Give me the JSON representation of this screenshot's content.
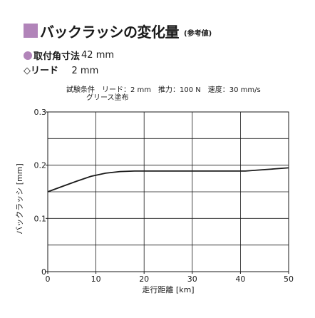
{
  "title": {
    "main": "バックラッシの変化量",
    "sub": "(参考値)",
    "square_color": "#b184b9"
  },
  "spec": {
    "bullet_color": "#b184b9",
    "shaft_label": "取付角寸法",
    "shaft_value": "42 mm",
    "lead_label": "◇リード",
    "lead_value": "2 mm"
  },
  "conditions": {
    "line1": "試験条件　リード：2 mm　推力：100 N　速度：30 mm/s",
    "line2": "グリース塗布"
  },
  "chart_data": {
    "type": "line",
    "xlabel": "走行距離 [km]",
    "ylabel": "バックラッシ [mm]",
    "xlim": [
      0,
      50
    ],
    "ylim": [
      0,
      0.3
    ],
    "x_ticks": [
      0,
      10,
      20,
      30,
      40,
      50
    ],
    "x_tick_labels": [
      "0",
      "10",
      "20",
      "30",
      "40",
      "50"
    ],
    "y_ticks": [
      0,
      0.1,
      0.2,
      0.3
    ],
    "y_tick_labels": [
      "0",
      "0.1",
      "0.2",
      "0.3"
    ],
    "x_grid_step": 10,
    "y_grid_step": 0.05,
    "grid": true,
    "series": [
      {
        "x": [
          0,
          3,
          6,
          9,
          12,
          15,
          18,
          22,
          26,
          30,
          34,
          38,
          41,
          44,
          47,
          50
        ],
        "y": [
          0.15,
          0.16,
          0.17,
          0.179,
          0.185,
          0.188,
          0.189,
          0.189,
          0.189,
          0.189,
          0.189,
          0.189,
          0.189,
          0.191,
          0.193,
          0.195
        ],
        "color": "#1a1a1a"
      }
    ]
  }
}
